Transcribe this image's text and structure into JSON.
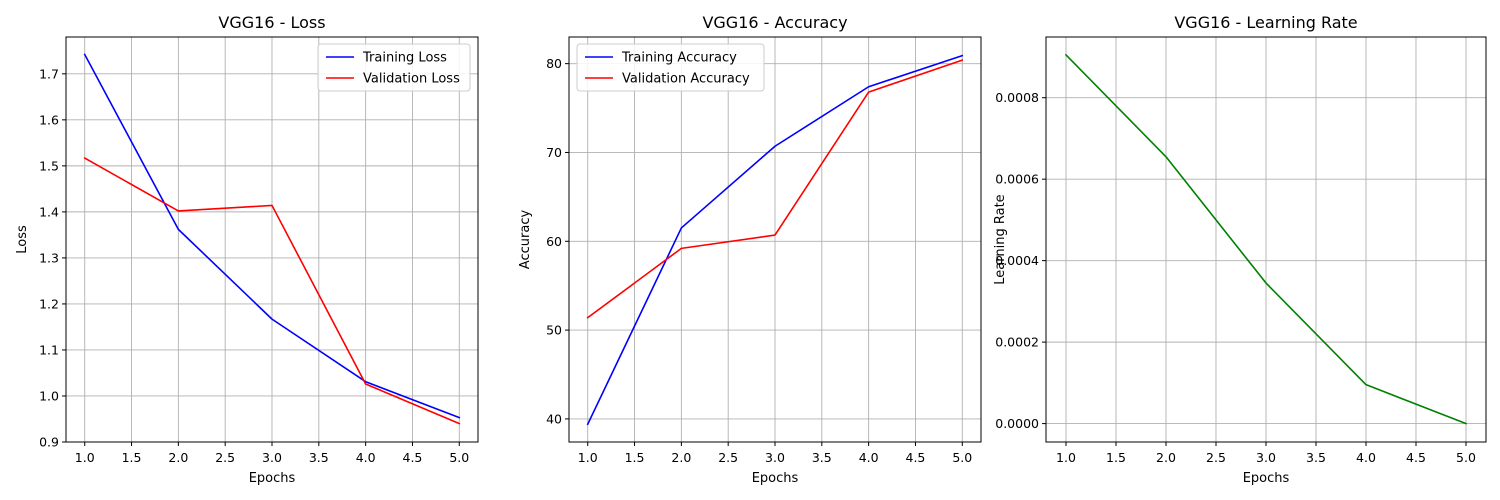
{
  "chart_data": [
    {
      "type": "line",
      "title": "VGG16 - Loss",
      "xlabel": "Epochs",
      "ylabel": "Loss",
      "x": [
        1,
        2,
        3,
        4,
        5
      ],
      "xlim": [
        0.8,
        5.2
      ],
      "ylim": [
        0.9,
        1.78
      ],
      "xticks": [
        1.0,
        1.5,
        2.0,
        2.5,
        3.0,
        3.5,
        4.0,
        4.5,
        5.0
      ],
      "xtick_labels": [
        "1.0",
        "1.5",
        "2.0",
        "2.5",
        "3.0",
        "3.5",
        "4.0",
        "4.5",
        "5.0"
      ],
      "yticks": [
        0.9,
        1.0,
        1.1,
        1.2,
        1.3,
        1.4,
        1.5,
        1.6,
        1.7
      ],
      "ytick_labels": [
        "0.9",
        "1.0",
        "1.1",
        "1.2",
        "1.3",
        "1.4",
        "1.5",
        "1.6",
        "1.7"
      ],
      "grid": true,
      "legend": "top-right",
      "series": [
        {
          "name": "Training Loss",
          "color": "#0000ff",
          "values": [
            1.742,
            1.362,
            1.167,
            1.031,
            0.953
          ]
        },
        {
          "name": "Validation Loss",
          "color": "#ff0000",
          "values": [
            1.517,
            1.402,
            1.414,
            1.026,
            0.94
          ]
        }
      ]
    },
    {
      "type": "line",
      "title": "VGG16 - Accuracy",
      "xlabel": "Epochs",
      "ylabel": "Accuracy",
      "x": [
        1,
        2,
        3,
        4,
        5
      ],
      "xlim": [
        0.8,
        5.2
      ],
      "ylim": [
        37.4,
        83
      ],
      "xticks": [
        1.0,
        1.5,
        2.0,
        2.5,
        3.0,
        3.5,
        4.0,
        4.5,
        5.0
      ],
      "xtick_labels": [
        "1.0",
        "1.5",
        "2.0",
        "2.5",
        "3.0",
        "3.5",
        "4.0",
        "4.5",
        "5.0"
      ],
      "yticks": [
        40,
        50,
        60,
        70,
        80
      ],
      "ytick_labels": [
        "40",
        "50",
        "60",
        "70",
        "80"
      ],
      "grid": true,
      "legend": "top-left",
      "series": [
        {
          "name": "Training Accuracy",
          "color": "#0000ff",
          "values": [
            39.4,
            61.5,
            70.7,
            77.4,
            80.9
          ]
        },
        {
          "name": "Validation Accuracy",
          "color": "#ff0000",
          "values": [
            51.4,
            59.2,
            60.7,
            76.8,
            80.4
          ]
        }
      ]
    },
    {
      "type": "line",
      "title": "VGG16 - Learning Rate",
      "xlabel": "Epochs",
      "ylabel": "Learning Rate",
      "x": [
        1,
        2,
        3,
        4,
        5
      ],
      "xlim": [
        0.8,
        5.2
      ],
      "ylim": [
        -4.52e-05,
        0.000949
      ],
      "xticks": [
        1.0,
        1.5,
        2.0,
        2.5,
        3.0,
        3.5,
        4.0,
        4.5,
        5.0
      ],
      "xtick_labels": [
        "1.0",
        "1.5",
        "2.0",
        "2.5",
        "3.0",
        "3.5",
        "4.0",
        "4.5",
        "5.0"
      ],
      "yticks": [
        0,
        0.0002,
        0.0004,
        0.0006,
        0.0008
      ],
      "ytick_labels": [
        "0.0000",
        "0.0002",
        "0.0004",
        "0.0006",
        "0.0008"
      ],
      "grid": true,
      "legend": "none",
      "series": [
        {
          "name": "",
          "color": "#008000",
          "values": [
            0.000905,
            0.000655,
            0.000345,
            9.55e-05,
            0.0
          ]
        }
      ]
    }
  ]
}
